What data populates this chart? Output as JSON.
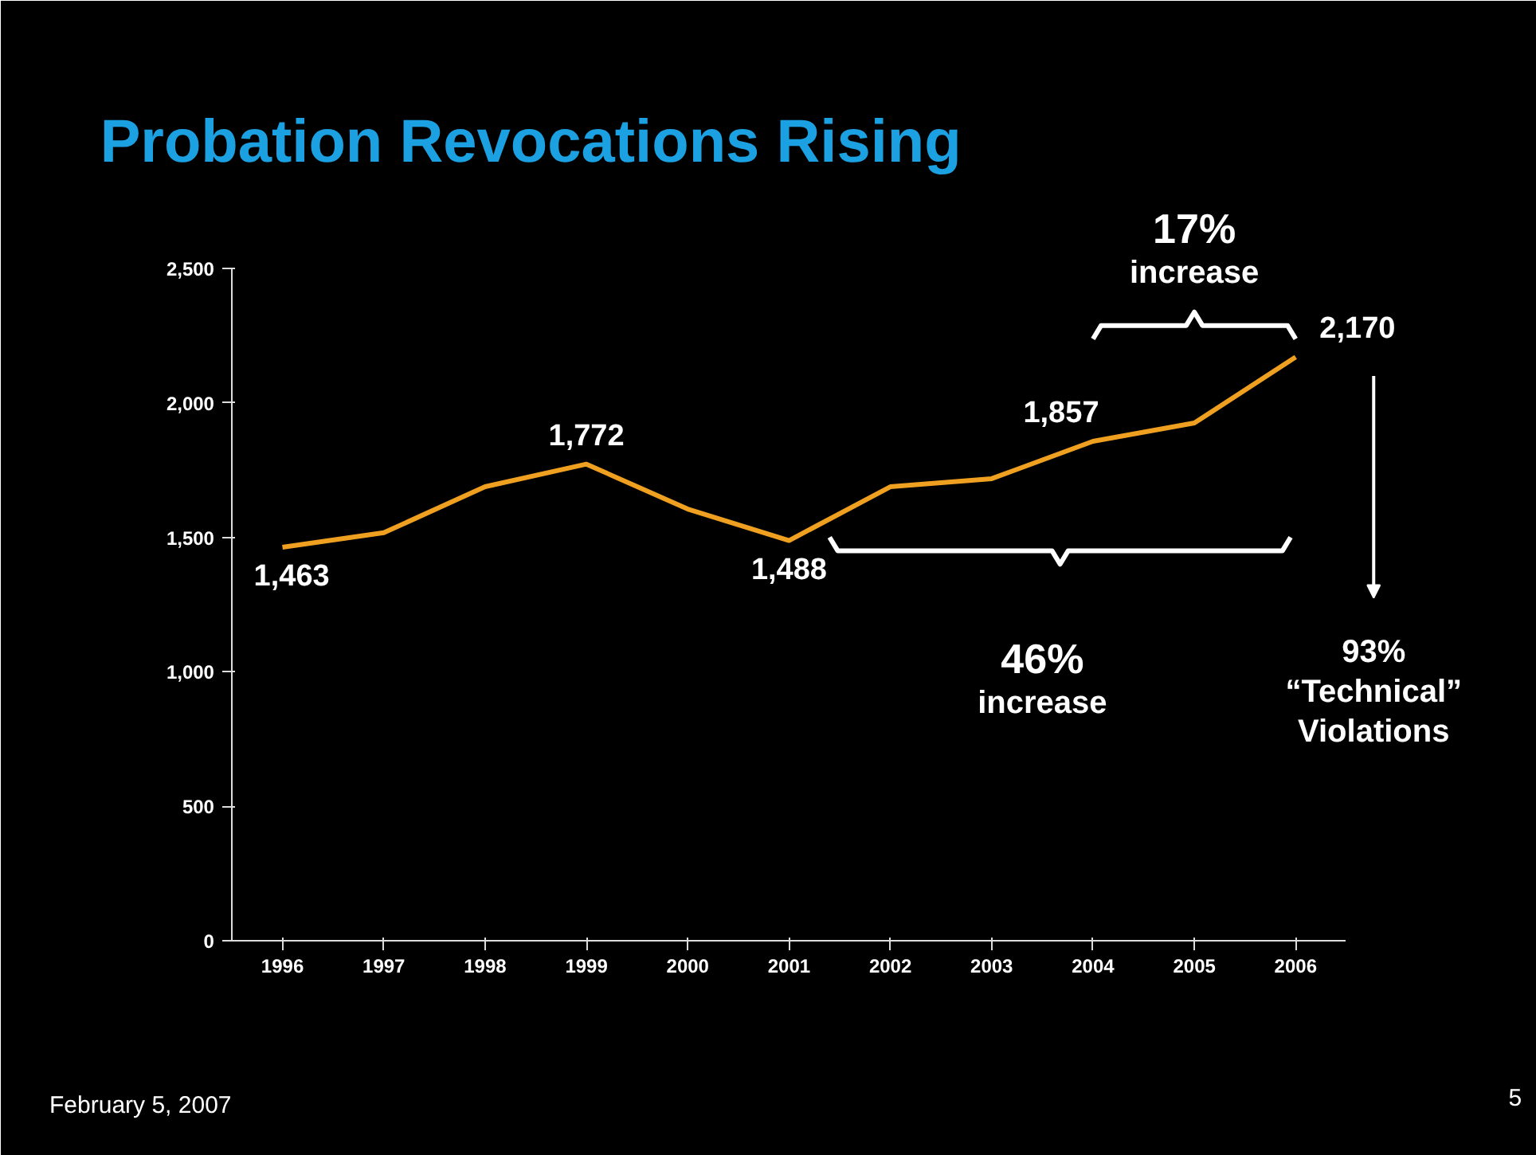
{
  "chart_data": {
    "type": "line",
    "title": "Probation Revocations Rising",
    "categories": [
      "1996",
      "1997",
      "1998",
      "1999",
      "2000",
      "2001",
      "2002",
      "2003",
      "2004",
      "2005",
      "2006"
    ],
    "series": [
      {
        "color": "#f0a020",
        "values": [
          1463,
          1517,
          1688,
          1772,
          1605,
          1488,
          1688,
          1718,
          1857,
          1925,
          2170
        ],
        "value_labels": [
          "1,463",
          null,
          null,
          "1,772",
          null,
          "1,488",
          null,
          null,
          "1,857",
          null,
          "2,170"
        ]
      }
    ],
    "ylim": [
      0,
      2500
    ],
    "yticks": [
      {
        "value": 0,
        "label": "0"
      },
      {
        "value": 500,
        "label": "500"
      },
      {
        "value": 1000,
        "label": "1,000"
      },
      {
        "value": 1500,
        "label": "1,500"
      },
      {
        "value": 2000,
        "label": "2,000"
      },
      {
        "value": 2500,
        "label": "2,500"
      }
    ],
    "annotations": [
      "17% increase",
      "46% increase",
      "93% “Technical” Violations",
      "February 5, 2007",
      "5"
    ],
    "grid": false,
    "marker": "none",
    "line_style": "solid"
  }
}
